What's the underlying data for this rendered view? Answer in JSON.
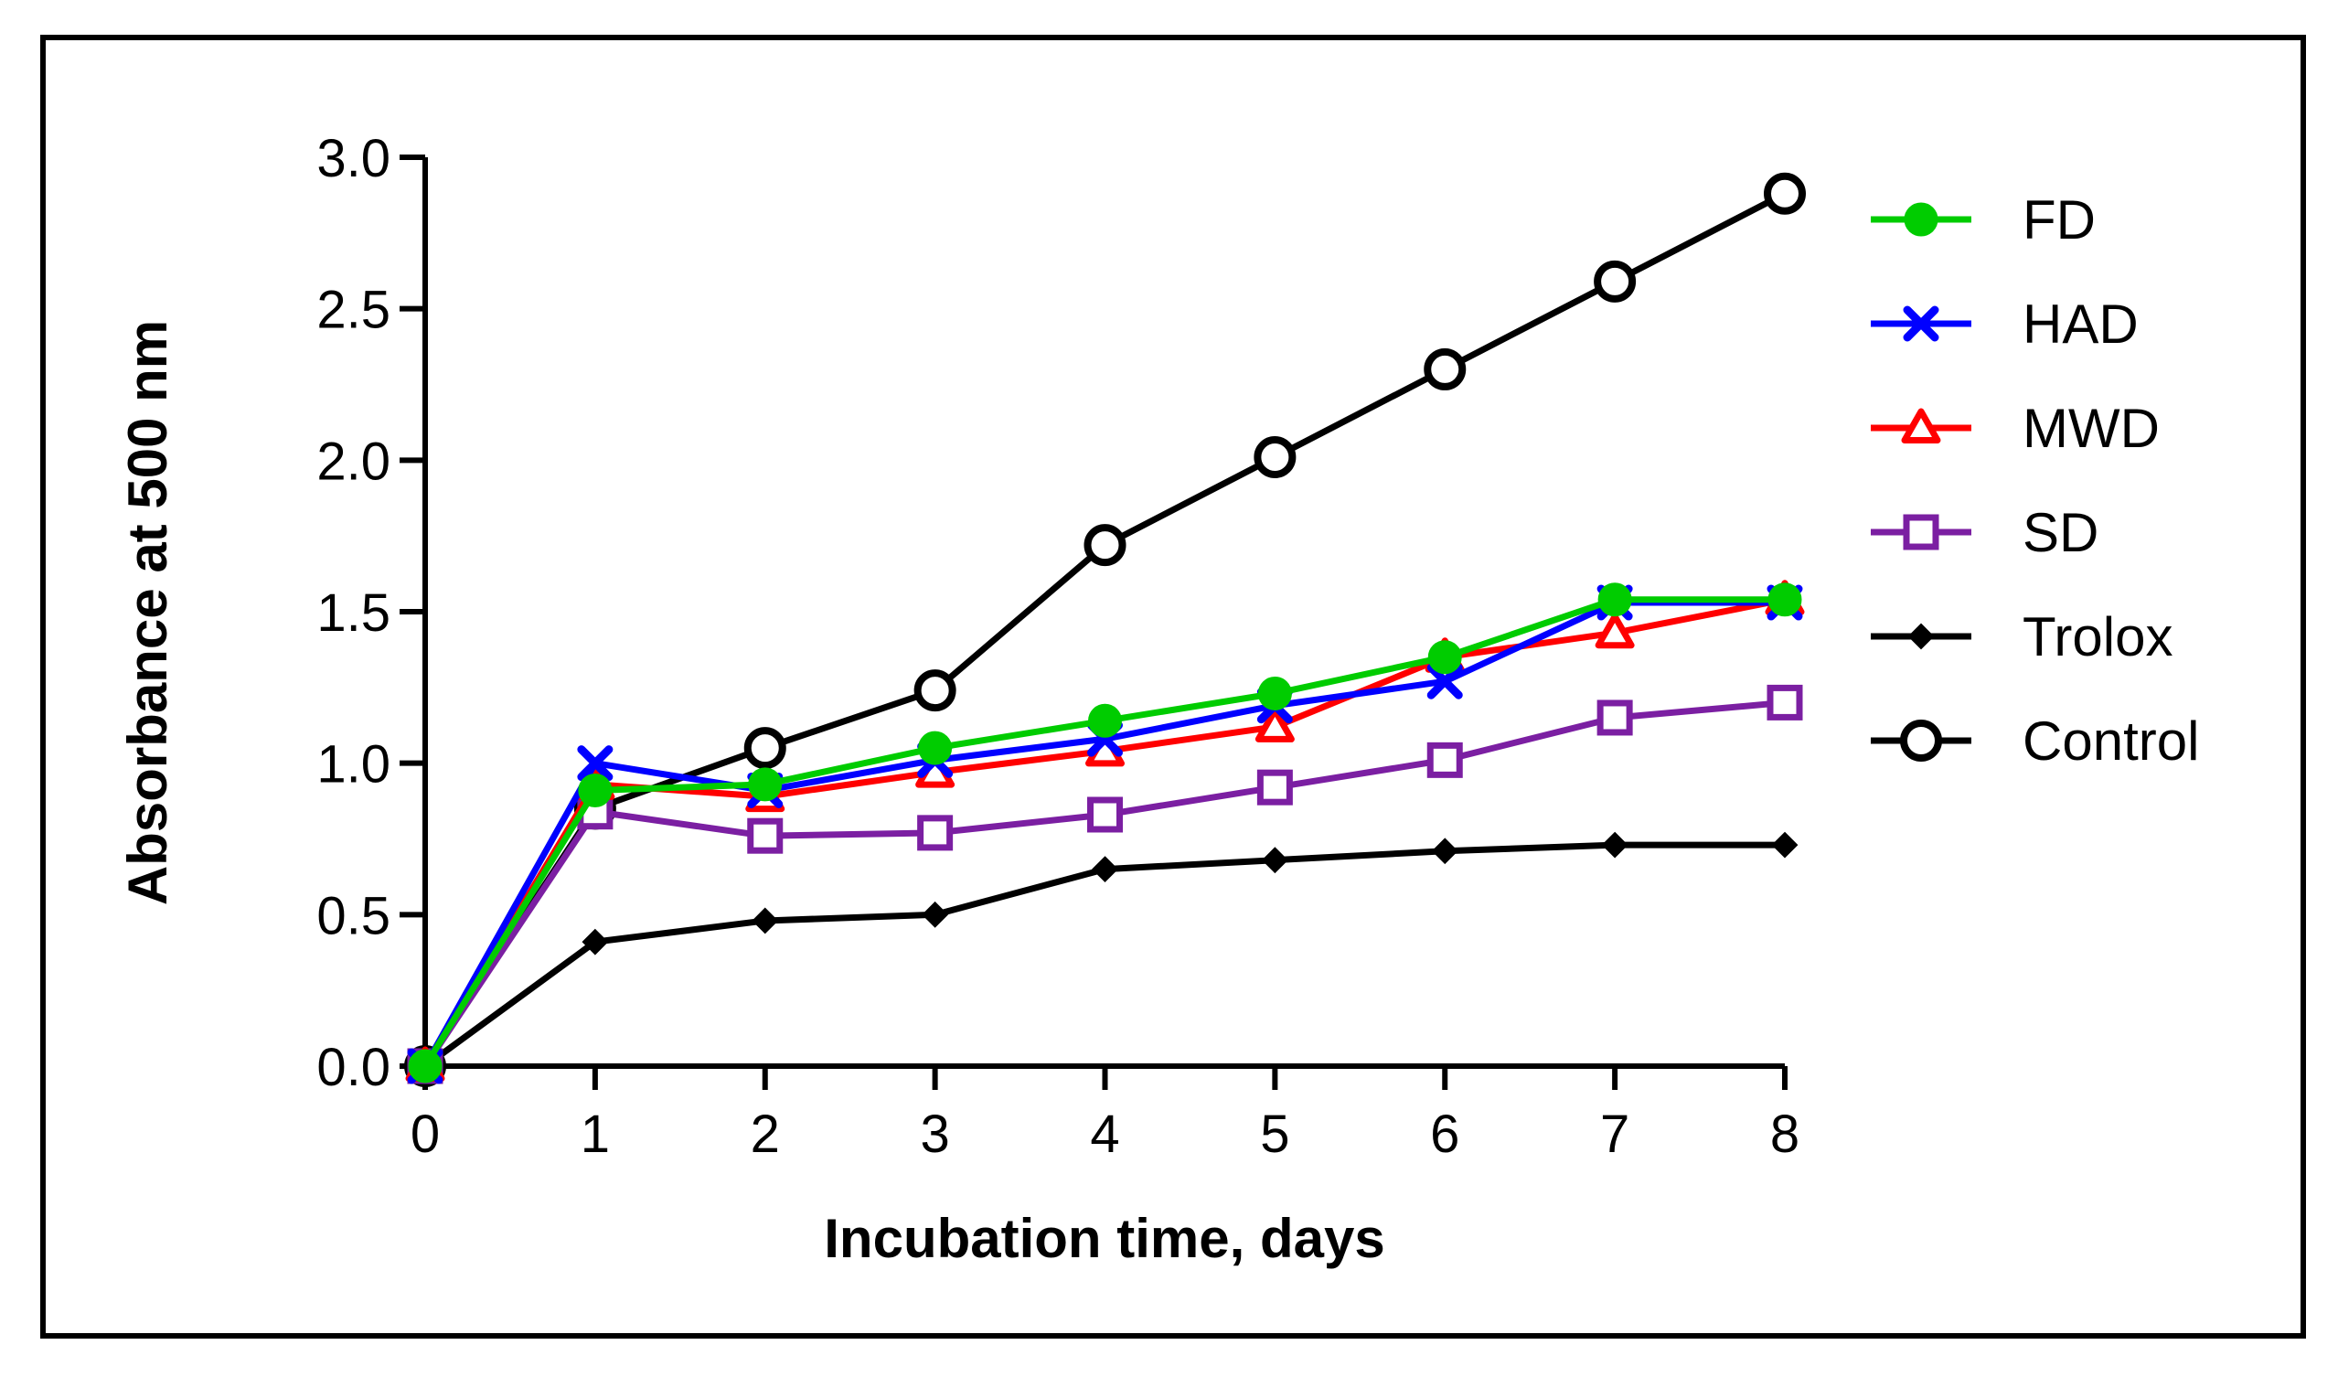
{
  "chart_data": {
    "type": "line",
    "title": "",
    "xlabel": "Incubation time, days",
    "ylabel": "Absorbance at 500 nm",
    "xlim": [
      0,
      8
    ],
    "ylim": [
      0,
      3.0
    ],
    "x_ticks": [
      "0",
      "1",
      "2",
      "3",
      "4",
      "5",
      "6",
      "7",
      "8"
    ],
    "y_ticks": [
      "0.0",
      "0.5",
      "1.0",
      "1.5",
      "2.0",
      "2.5",
      "3.0"
    ],
    "x": [
      0,
      1,
      2,
      3,
      4,
      5,
      6,
      7,
      8
    ],
    "grid": false,
    "legend_position": "right",
    "series": [
      {
        "name": "FD",
        "color": "#00cc00",
        "marker": "circle-filled",
        "values": [
          0.0,
          0.91,
          0.93,
          1.05,
          1.14,
          1.23,
          1.35,
          1.54,
          1.54
        ]
      },
      {
        "name": "HAD",
        "color": "#0000ff",
        "marker": "x",
        "values": [
          0.0,
          1.0,
          0.91,
          1.01,
          1.08,
          1.19,
          1.27,
          1.53,
          1.53
        ]
      },
      {
        "name": "MWD",
        "color": "#ff0000",
        "marker": "triangle-open",
        "values": [
          0.0,
          0.93,
          0.89,
          0.97,
          1.04,
          1.12,
          1.35,
          1.43,
          1.54
        ]
      },
      {
        "name": "SD",
        "color": "#7b1fa2",
        "marker": "square-open",
        "values": [
          0.0,
          0.84,
          0.76,
          0.77,
          0.83,
          0.92,
          1.01,
          1.15,
          1.2
        ]
      },
      {
        "name": "Trolox",
        "color": "#000000",
        "marker": "diamond-filled",
        "values": [
          0.0,
          0.41,
          0.48,
          0.5,
          0.65,
          0.68,
          0.71,
          0.73,
          0.73
        ]
      },
      {
        "name": "Control",
        "color": "#000000",
        "marker": "circle-open",
        "values": [
          0.0,
          0.85,
          1.05,
          1.24,
          1.72,
          2.01,
          2.3,
          2.59,
          2.88
        ]
      }
    ]
  }
}
